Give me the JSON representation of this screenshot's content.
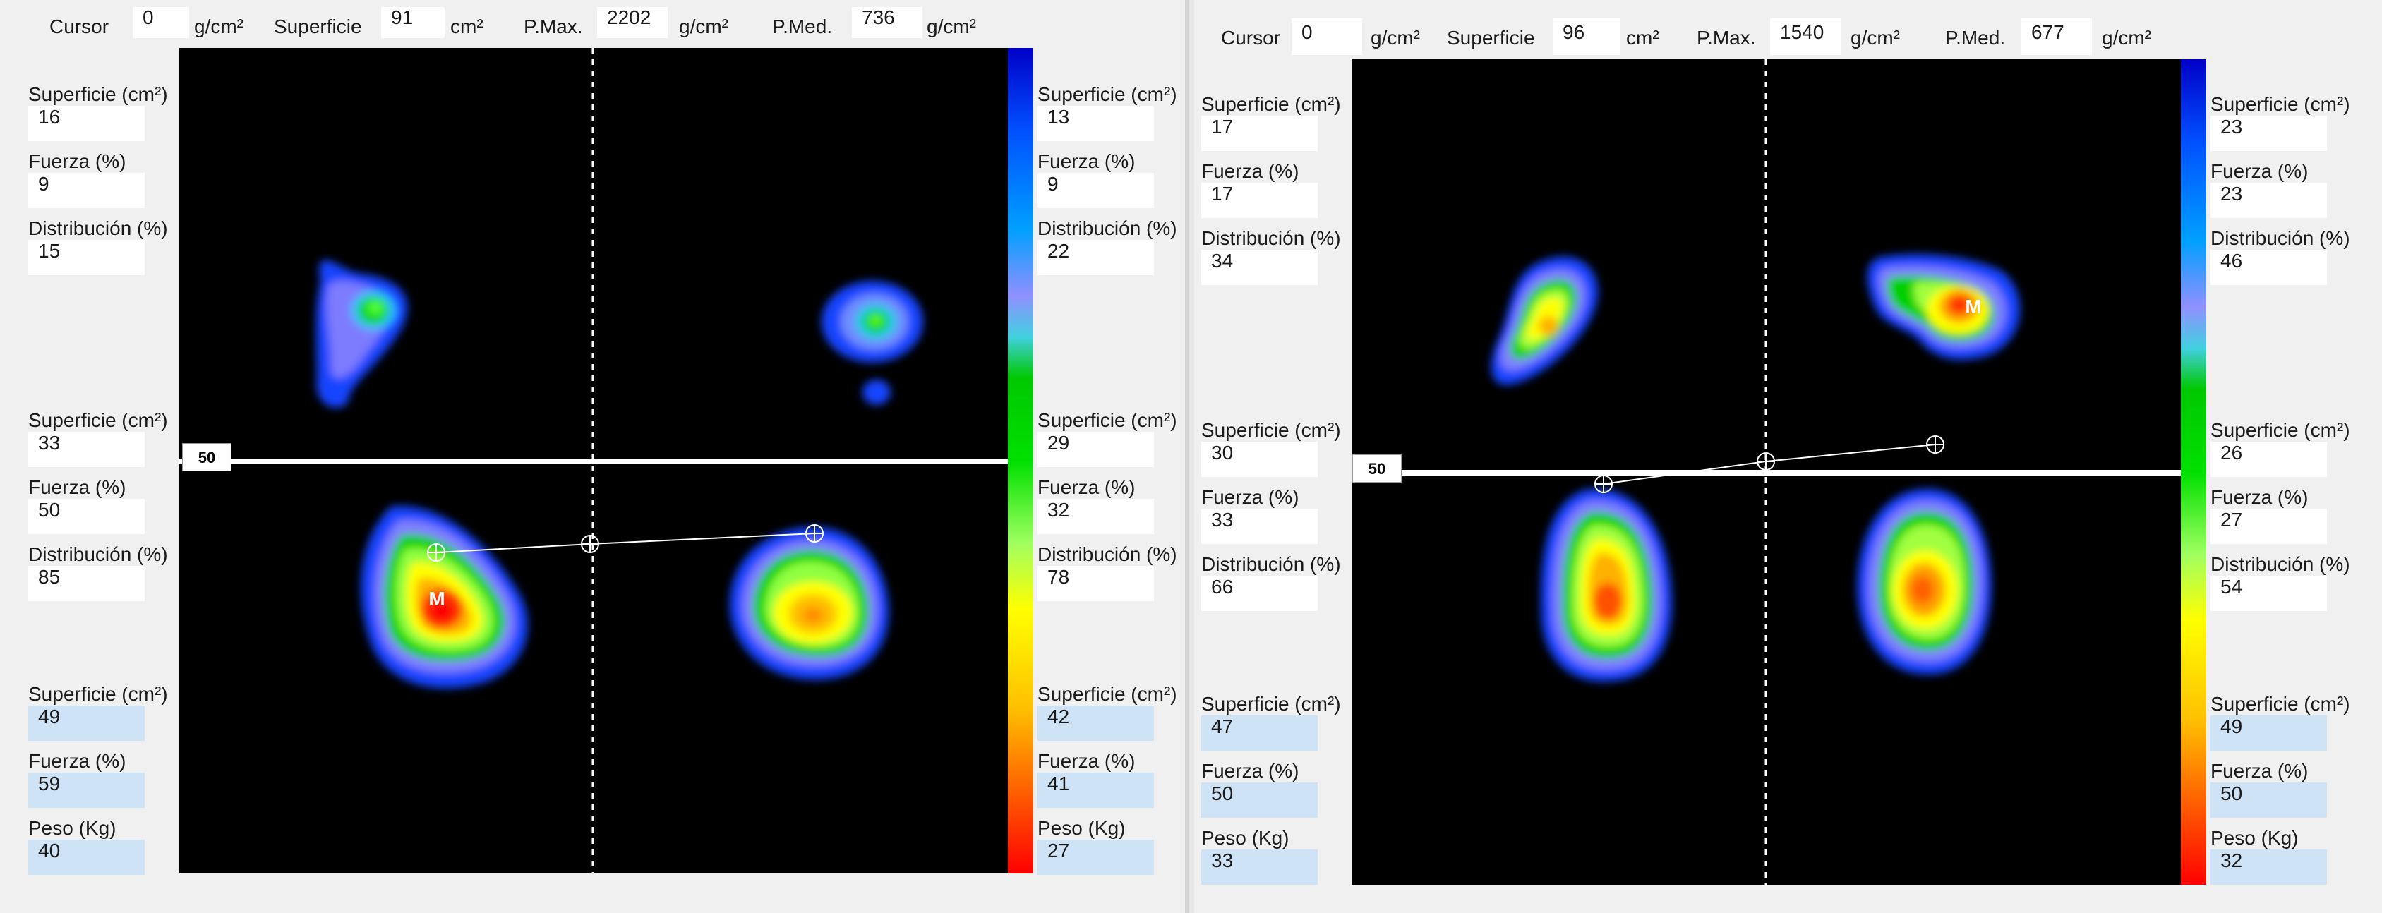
{
  "units": {
    "pressure": "g/cm²",
    "area": "cm²"
  },
  "header_labels": {
    "cursor": "Cursor",
    "superficie": "Superficie",
    "pmax": "P.Max.",
    "pmed": "P.Med."
  },
  "zone_labels": {
    "superficie": "Superficie (cm²)",
    "fuerza": "Fuerza (%)",
    "distribucion": "Distribución (%)",
    "peso": "Peso (Kg)"
  },
  "panels": [
    {
      "header": {
        "cursor": "0",
        "superficie": "91",
        "pmax": "2202",
        "pmed": "736"
      },
      "marker": "50",
      "center_mark": "M",
      "left": {
        "top": {
          "superficie": "16",
          "fuerza": "9",
          "distribucion": "15"
        },
        "middle": {
          "superficie": "33",
          "fuerza": "50",
          "distribucion": "85"
        },
        "total": {
          "superficie": "49",
          "fuerza": "59",
          "peso": "40"
        }
      },
      "right": {
        "top": {
          "superficie": "13",
          "fuerza": "9",
          "distribucion": "22"
        },
        "middle": {
          "superficie": "29",
          "fuerza": "32",
          "distribucion": "78"
        },
        "total": {
          "superficie": "42",
          "fuerza": "41",
          "peso": "27"
        }
      }
    },
    {
      "header": {
        "cursor": "0",
        "superficie": "96",
        "pmax": "1540",
        "pmed": "677"
      },
      "marker": "50",
      "center_mark": "M",
      "left": {
        "top": {
          "superficie": "17",
          "fuerza": "17",
          "distribucion": "34"
        },
        "middle": {
          "superficie": "30",
          "fuerza": "33",
          "distribucion": "66"
        },
        "total": {
          "superficie": "47",
          "fuerza": "50",
          "peso": "33"
        }
      },
      "right": {
        "top": {
          "superficie": "23",
          "fuerza": "23",
          "distribucion": "46"
        },
        "middle": {
          "superficie": "26",
          "fuerza": "27",
          "distribucion": "54"
        },
        "total": {
          "superficie": "49",
          "fuerza": "50",
          "peso": "32"
        }
      }
    }
  ]
}
